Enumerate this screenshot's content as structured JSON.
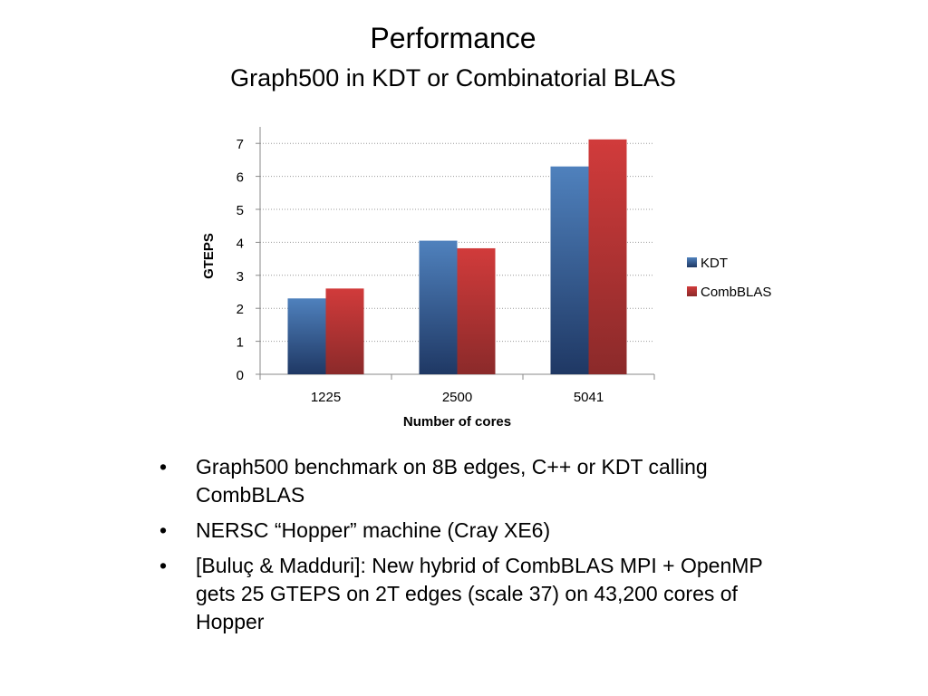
{
  "slide": {
    "title": "Performance",
    "subtitle": "Graph500 in KDT or Combinatorial BLAS",
    "bullet_glyph": "•",
    "bullets": [
      "Graph500 benchmark on 8B edges, C++ or KDT calling CombBLAS",
      "NERSC “Hopper” machine (Cray XE6)",
      "[Buluç & Madduri]:  New hybrid of CombBLAS MPI + OpenMP gets 25 GTEPS on 2T edges (scale 37) on 43,200 cores of Hopper"
    ]
  },
  "chart_data": {
    "type": "bar",
    "categories": [
      "1225",
      "2500",
      "5041"
    ],
    "series": [
      {
        "name": "KDT",
        "values": [
          2.3,
          4.05,
          6.3
        ],
        "color": "#4f81bd",
        "color_dark": "#1f3864"
      },
      {
        "name": "CombBLAS",
        "values": [
          2.6,
          3.82,
          7.12
        ],
        "color": "#d13b3b",
        "color_dark": "#8b2a2a"
      }
    ],
    "xlabel": "Number of cores",
    "ylabel": "GTEPS",
    "ylim": [
      0,
      7.5
    ],
    "yticks": [
      0,
      1,
      2,
      3,
      4,
      5,
      6,
      7
    ],
    "grid": true,
    "legend_position": "right"
  }
}
